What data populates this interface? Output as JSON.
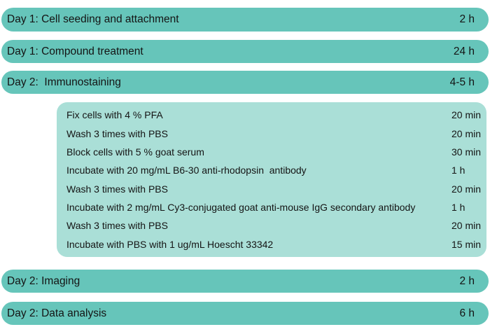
{
  "palette": {
    "bar_color": "#66c5ba",
    "subbox_color": "#aadfd7",
    "text_color": "#141414"
  },
  "timeline": {
    "bars": [
      {
        "label": "Day 1: Cell seeding and attachment",
        "duration": "2 h"
      },
      {
        "label": "Day 1: Compound treatment",
        "duration": "24 h"
      },
      {
        "label": "Day 2:  Immunostaining",
        "duration": "4-5 h"
      },
      {
        "label": "Day 2: Imaging",
        "duration": "2 h"
      },
      {
        "label": "Day 2: Data analysis",
        "duration": "6 h"
      }
    ],
    "immunostaining_steps": [
      {
        "label": "Fix cells with 4 % PFA",
        "duration": "20 min"
      },
      {
        "label": "Wash 3 times with PBS",
        "duration": "20 min"
      },
      {
        "label": "Block cells with 5 % goat serum",
        "duration": "30 min"
      },
      {
        "label": "Incubate with 20 mg/mL B6-30 anti-rhodopsin  antibody",
        "duration": "1 h"
      },
      {
        "label": "Wash 3 times with PBS",
        "duration": "20 min"
      },
      {
        "label": "Incubate with 2 mg/mL Cy3-conjugated goat anti-mouse IgG secondary antibody",
        "duration": "1 h"
      },
      {
        "label": "Wash 3 times with PBS",
        "duration": "20 min"
      },
      {
        "label": "Incubate with PBS with 1 ug/mL Hoescht 33342",
        "duration": "15 min"
      }
    ]
  }
}
